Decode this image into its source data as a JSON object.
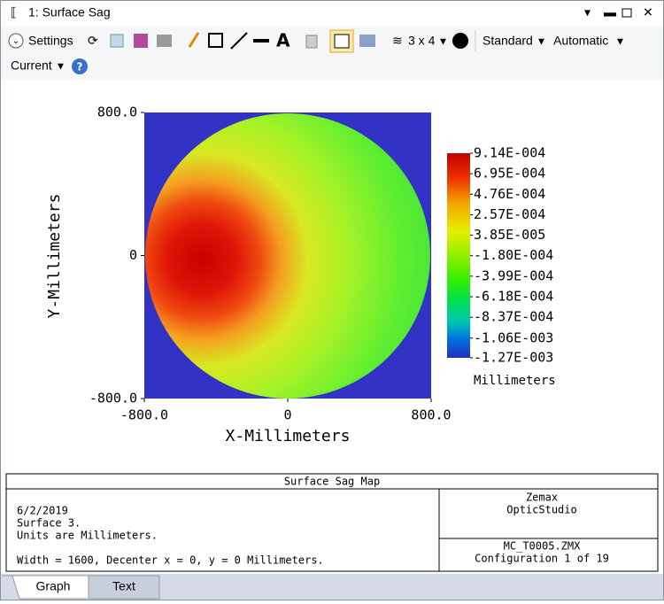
{
  "window": {
    "title": "1: Surface Sag"
  },
  "toolbar": {
    "settings": "Settings",
    "layout": "3 x 4",
    "standard": "Standard",
    "automatic": "Automatic",
    "current": "Current"
  },
  "plot": {
    "x_label": "X-Millimeters",
    "y_label": "Y-Millimeters",
    "xlim": [
      -800,
      800
    ],
    "ylim": [
      -800,
      800
    ],
    "xticks": [
      {
        "value": -800,
        "label": "-800.0"
      },
      0,
      {
        "value": 800,
        "label": "800.0"
      }
    ],
    "yticks": [
      {
        "value": -800,
        "label": "-800.0"
      },
      0,
      {
        "value": 800,
        "label": "800.0"
      }
    ],
    "colorbar": {
      "unit": "Millimeters",
      "ticks": [
        {
          "value": 0.000914,
          "label": "9.14E-004"
        },
        {
          "value": 0.000695,
          "label": "6.95E-004"
        },
        {
          "value": 0.000476,
          "label": "4.76E-004"
        },
        {
          "value": 0.000257,
          "label": "2.57E-004"
        },
        {
          "value": 3.85e-05,
          "label": "3.85E-005"
        },
        {
          "value": -0.00018,
          "label": "-1.80E-004"
        },
        {
          "value": -0.000399,
          "label": "-3.99E-004"
        },
        {
          "value": -0.000618,
          "label": "-6.18E-004"
        },
        {
          "value": -0.000837,
          "label": "-8.37E-004"
        },
        {
          "value": -0.00106,
          "label": "-1.06E-003"
        },
        {
          "value": -0.00127,
          "label": "-1.27E-003"
        }
      ]
    }
  },
  "info": {
    "title": "Surface Sag Map",
    "left": [
      "6/2/2019",
      "Surface 3.",
      "Units are Millimeters.",
      "Width = 1600, Decenter x = 0, y = 0 Millimeters."
    ],
    "right_top": [
      "Zemax",
      "OpticStudio"
    ],
    "right_bottom": [
      "MC_T0005.ZMX",
      "Configuration 1 of 19"
    ]
  },
  "tabs": [
    "Graph",
    "Text"
  ]
}
